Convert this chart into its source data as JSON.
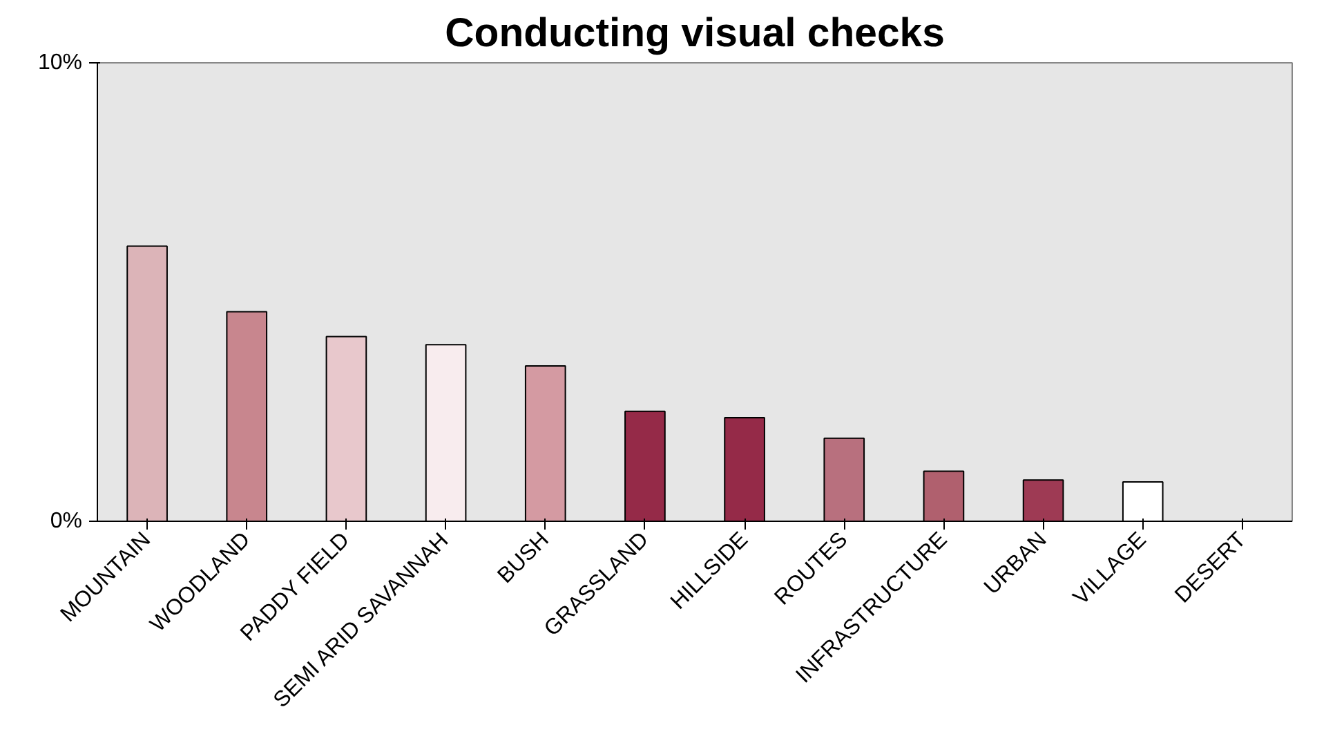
{
  "chart_data": {
    "type": "bar",
    "title": "Conducting visual checks",
    "categories": [
      "MOUNTAIN",
      "WOODLAND",
      "PADDY FIELD",
      "SEMI ARID SAVANNAH",
      "BUSH",
      "GRASSLAND",
      "HILLSIDE",
      "ROUTES",
      "INFRASTRUCTURE",
      "URBAN",
      "VILLAGE",
      "DESERT"
    ],
    "values": [
      6.0,
      4.57,
      4.03,
      3.85,
      3.39,
      2.4,
      2.26,
      1.81,
      1.09,
      0.9,
      0.86,
      0
    ],
    "colors": [
      "#dcb4b8",
      "#c8868e",
      "#e8c8cc",
      "#f8ecee",
      "#d49aa2",
      "#952a48",
      "#952a48",
      "#b8707e",
      "#b0606e",
      "#9e3a54",
      "#ffffff",
      null
    ],
    "ylim": [
      0,
      10
    ],
    "yticks": [
      {
        "value": 0,
        "label": "0%"
      },
      {
        "value": 10,
        "label": "10%"
      }
    ],
    "grid": false
  }
}
